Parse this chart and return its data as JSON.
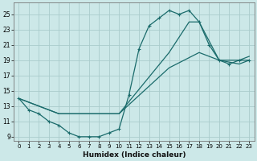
{
  "xlabel": "Humidex (Indice chaleur)",
  "bg_color": "#cce8e8",
  "grid_color": "#aacccc",
  "line_color": "#1a6b6b",
  "xlim": [
    -0.5,
    23.5
  ],
  "ylim": [
    8.5,
    26.5
  ],
  "xticks": [
    0,
    1,
    2,
    3,
    4,
    5,
    6,
    7,
    8,
    9,
    10,
    11,
    12,
    13,
    14,
    15,
    16,
    17,
    18,
    19,
    20,
    21,
    22,
    23
  ],
  "yticks": [
    9,
    11,
    13,
    15,
    17,
    19,
    21,
    23,
    25
  ],
  "series": [
    {
      "x": [
        0,
        1,
        2,
        3,
        4,
        5,
        6,
        7,
        8,
        9,
        10,
        11,
        12,
        13,
        14,
        15,
        16,
        17,
        18,
        19,
        20,
        21,
        22,
        23
      ],
      "y": [
        14,
        12.5,
        12,
        11,
        10.5,
        9.5,
        9,
        9,
        9,
        9.5,
        10,
        14.5,
        20.5,
        23.5,
        24.5,
        25.5,
        25,
        25.5,
        24,
        21,
        19,
        18.5,
        19,
        19
      ],
      "marker": "+"
    },
    {
      "x": [
        0,
        4,
        10,
        15,
        17,
        18,
        20,
        21,
        22,
        23
      ],
      "y": [
        14,
        12,
        12,
        20,
        24,
        24,
        19,
        19,
        19,
        19.5
      ],
      "marker": null
    },
    {
      "x": [
        0,
        4,
        10,
        15,
        18,
        20,
        22,
        23
      ],
      "y": [
        14,
        12,
        12,
        18,
        20,
        19,
        18.5,
        19
      ],
      "marker": null
    }
  ]
}
